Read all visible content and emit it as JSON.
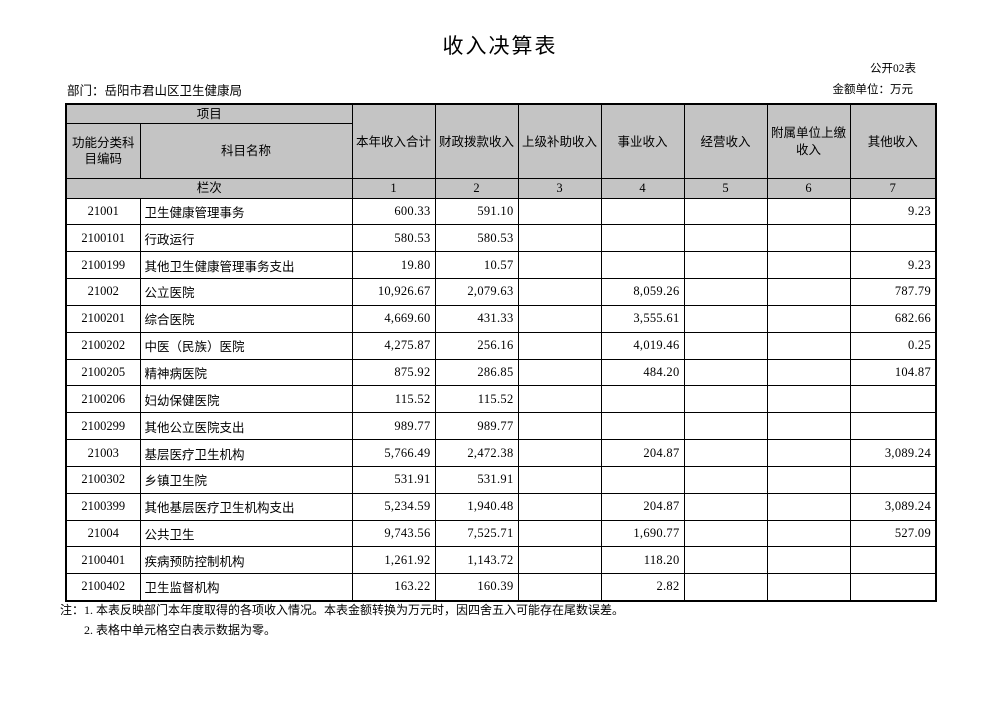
{
  "page": {
    "title": "收入决算表",
    "table_code": "公开02表",
    "department_label": "部门：岳阳市君山区卫生健康局",
    "unit_label": "金额单位：万元"
  },
  "table": {
    "header": {
      "project": "项目",
      "code_header": "功能分类科目编码",
      "subject_name_header": "科目名称",
      "columns": [
        "本年收入合计",
        "财政拨款收入",
        "上级补助收入",
        "事业收入",
        "经营收入",
        "附属单位上缴收入",
        "其他收入"
      ],
      "lanci_label": "栏次",
      "lanci_numbers": [
        "1",
        "2",
        "3",
        "4",
        "5",
        "6",
        "7"
      ]
    },
    "rows": [
      {
        "code": "21001",
        "name": "卫生健康管理事务",
        "values": [
          "600.33",
          "591.10",
          "",
          "",
          "",
          "",
          "9.23"
        ]
      },
      {
        "code": "2100101",
        "name": "行政运行",
        "values": [
          "580.53",
          "580.53",
          "",
          "",
          "",
          "",
          ""
        ]
      },
      {
        "code": "2100199",
        "name": "其他卫生健康管理事务支出",
        "values": [
          "19.80",
          "10.57",
          "",
          "",
          "",
          "",
          "9.23"
        ]
      },
      {
        "code": "21002",
        "name": "公立医院",
        "values": [
          "10,926.67",
          "2,079.63",
          "",
          "8,059.26",
          "",
          "",
          "787.79"
        ]
      },
      {
        "code": "2100201",
        "name": "综合医院",
        "values": [
          "4,669.60",
          "431.33",
          "",
          "3,555.61",
          "",
          "",
          "682.66"
        ]
      },
      {
        "code": "2100202",
        "name": "中医（民族）医院",
        "values": [
          "4,275.87",
          "256.16",
          "",
          "4,019.46",
          "",
          "",
          "0.25"
        ]
      },
      {
        "code": "2100205",
        "name": "精神病医院",
        "values": [
          "875.92",
          "286.85",
          "",
          "484.20",
          "",
          "",
          "104.87"
        ]
      },
      {
        "code": "2100206",
        "name": "妇幼保健医院",
        "values": [
          "115.52",
          "115.52",
          "",
          "",
          "",
          "",
          ""
        ]
      },
      {
        "code": "2100299",
        "name": "其他公立医院支出",
        "values": [
          "989.77",
          "989.77",
          "",
          "",
          "",
          "",
          ""
        ]
      },
      {
        "code": "21003",
        "name": "基层医疗卫生机构",
        "values": [
          "5,766.49",
          "2,472.38",
          "",
          "204.87",
          "",
          "",
          "3,089.24"
        ]
      },
      {
        "code": "2100302",
        "name": "乡镇卫生院",
        "values": [
          "531.91",
          "531.91",
          "",
          "",
          "",
          "",
          ""
        ]
      },
      {
        "code": "2100399",
        "name": "其他基层医疗卫生机构支出",
        "values": [
          "5,234.59",
          "1,940.48",
          "",
          "204.87",
          "",
          "",
          "3,089.24"
        ]
      },
      {
        "code": "21004",
        "name": "公共卫生",
        "values": [
          "9,743.56",
          "7,525.71",
          "",
          "1,690.77",
          "",
          "",
          "527.09"
        ]
      },
      {
        "code": "2100401",
        "name": "疾病预防控制机构",
        "values": [
          "1,261.92",
          "1,143.72",
          "",
          "118.20",
          "",
          "",
          ""
        ]
      },
      {
        "code": "2100402",
        "name": "卫生监督机构",
        "values": [
          "163.22",
          "160.39",
          "",
          "2.82",
          "",
          "",
          ""
        ]
      }
    ]
  },
  "notes": {
    "label": "注：",
    "lines": [
      "1. 本表反映部门本年度取得的各项收入情况。本表金额转换为万元时，因四舍五入可能存在尾数误差。",
      "2. 表格中单元格空白表示数据为零。"
    ]
  }
}
